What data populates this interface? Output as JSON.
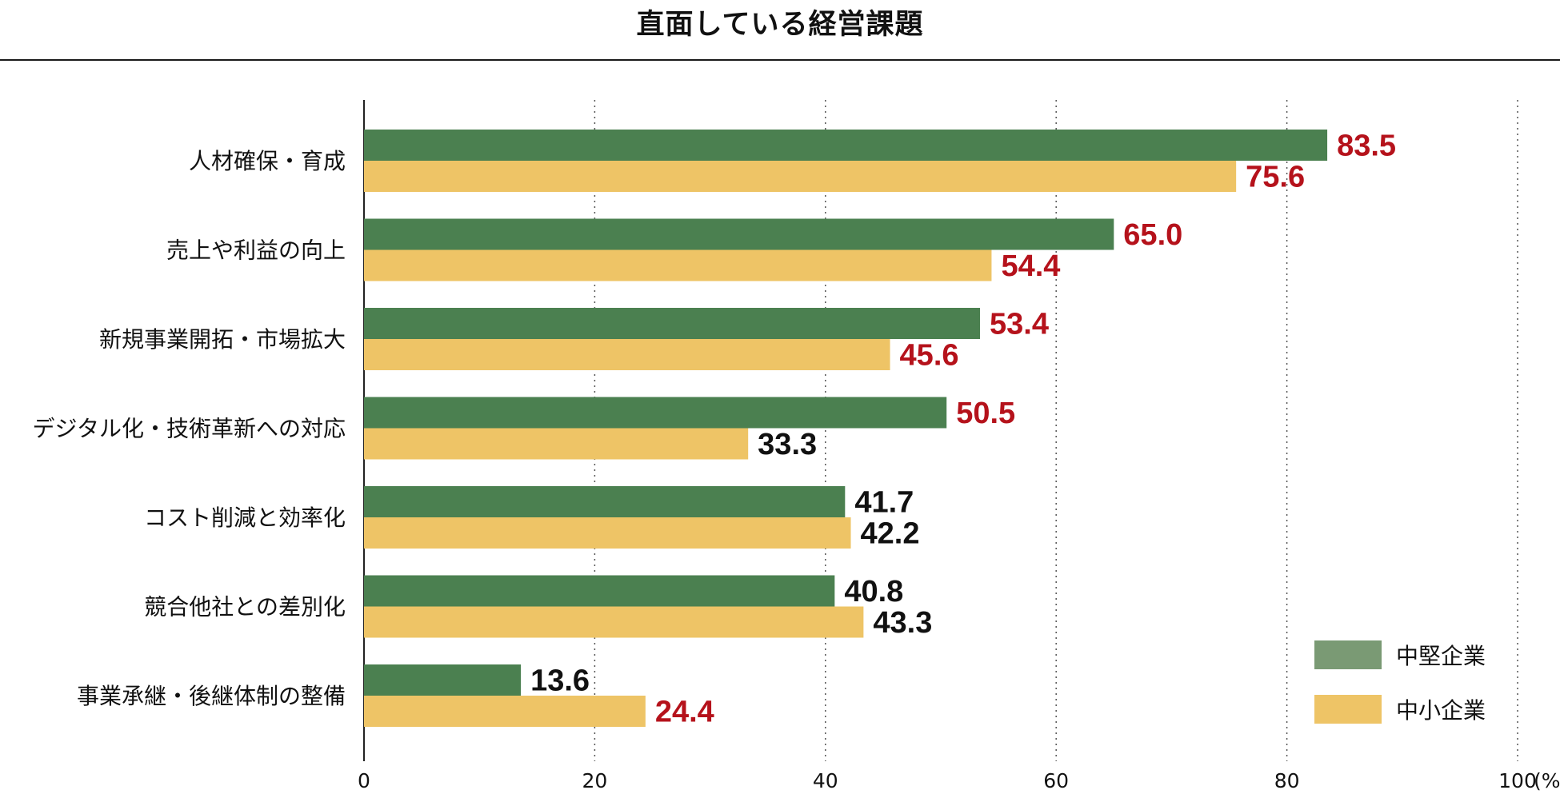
{
  "chart_data": {
    "type": "bar",
    "orientation": "horizontal",
    "title": "直面している経営課題",
    "categories": [
      "人材確保・育成",
      "売上や利益の向上",
      "新規事業開拓・市場拡大",
      "デジタル化・技術革新への対応",
      "コスト削減と効率化",
      "競合他社との差別化",
      "事業承継・後継体制の整備"
    ],
    "series": [
      {
        "name": "中堅企業",
        "color": "#4b8050",
        "legend_color": "#7a9a74",
        "values": [
          83.5,
          65.0,
          53.4,
          50.5,
          41.7,
          40.8,
          13.6
        ],
        "labels": [
          "83.5",
          "65.0",
          "53.4",
          "50.5",
          "41.7",
          "40.8",
          "13.6"
        ],
        "highlight": [
          true,
          true,
          true,
          true,
          false,
          false,
          false
        ]
      },
      {
        "name": "中小企業",
        "color": "#eec466",
        "legend_color": "#eec466",
        "values": [
          75.6,
          54.4,
          45.6,
          33.3,
          42.2,
          43.3,
          24.4
        ],
        "labels": [
          "75.6",
          "54.4",
          "45.6",
          "33.3",
          "42.2",
          "43.3",
          "24.4"
        ],
        "highlight": [
          true,
          true,
          true,
          false,
          false,
          false,
          true
        ]
      }
    ],
    "xlim": [
      0,
      100
    ],
    "xticks": [
      0,
      20,
      40,
      60,
      80,
      100
    ],
    "xtick_labels": [
      "0",
      "20",
      "40",
      "60",
      "80",
      "100"
    ],
    "xunit": "(%)",
    "grid": "vertical dotted",
    "legend_position": "bottom-right",
    "highlight_color": "#b5121b",
    "label_color": "#111111"
  }
}
